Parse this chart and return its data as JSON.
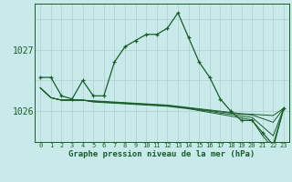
{
  "title": "Graphe pression niveau de la mer (hPa)",
  "background_color": "#c8eaea",
  "grid_color": "#b0cccc",
  "line_color": "#1a5c2a",
  "x_hours": [
    0,
    1,
    2,
    3,
    4,
    5,
    6,
    7,
    8,
    9,
    10,
    11,
    12,
    13,
    14,
    15,
    16,
    17,
    18,
    19,
    20,
    21,
    22,
    23
  ],
  "main_series": [
    1026.55,
    1026.55,
    1026.25,
    1026.2,
    1026.5,
    1026.25,
    1026.25,
    1026.8,
    1027.05,
    1027.15,
    1027.25,
    1027.25,
    1027.35,
    1027.6,
    1027.2,
    1026.8,
    1026.55,
    1026.2,
    1026.0,
    1025.85,
    1025.85,
    1025.65,
    1025.45,
    1026.05
  ],
  "flat_series": [
    [
      1026.38,
      1026.22,
      1026.18,
      1026.18,
      1026.18,
      1026.17,
      1026.16,
      1026.15,
      1026.14,
      1026.13,
      1026.12,
      1026.11,
      1026.1,
      1026.08,
      1026.06,
      1026.04,
      1026.02,
      1026.0,
      1025.98,
      1025.96,
      1025.95,
      1025.94,
      1025.93,
      1026.05
    ],
    [
      1026.38,
      1026.22,
      1026.18,
      1026.18,
      1026.18,
      1026.16,
      1026.15,
      1026.14,
      1026.13,
      1026.12,
      1026.11,
      1026.1,
      1026.09,
      1026.07,
      1026.05,
      1026.03,
      1026.01,
      1025.99,
      1025.97,
      1025.95,
      1025.94,
      1025.88,
      1025.82,
      1026.05
    ],
    [
      1026.38,
      1026.22,
      1026.18,
      1026.18,
      1026.18,
      1026.16,
      1026.15,
      1026.14,
      1026.13,
      1026.12,
      1026.11,
      1026.1,
      1026.09,
      1026.07,
      1026.05,
      1026.02,
      1026.0,
      1025.97,
      1025.95,
      1025.92,
      1025.9,
      1025.75,
      1025.6,
      1026.05
    ],
    [
      1026.38,
      1026.22,
      1026.18,
      1026.18,
      1026.18,
      1026.15,
      1026.14,
      1026.13,
      1026.12,
      1026.11,
      1026.1,
      1026.09,
      1026.08,
      1026.06,
      1026.04,
      1026.01,
      1025.98,
      1025.95,
      1025.92,
      1025.89,
      1025.86,
      1025.6,
      1025.4,
      1026.05
    ]
  ],
  "ylim": [
    1025.5,
    1027.75
  ],
  "yticks": [
    1026,
    1027
  ],
  "xticks": [
    0,
    1,
    2,
    3,
    4,
    5,
    6,
    7,
    8,
    9,
    10,
    11,
    12,
    13,
    14,
    15,
    16,
    17,
    18,
    19,
    20,
    21,
    22,
    23
  ]
}
